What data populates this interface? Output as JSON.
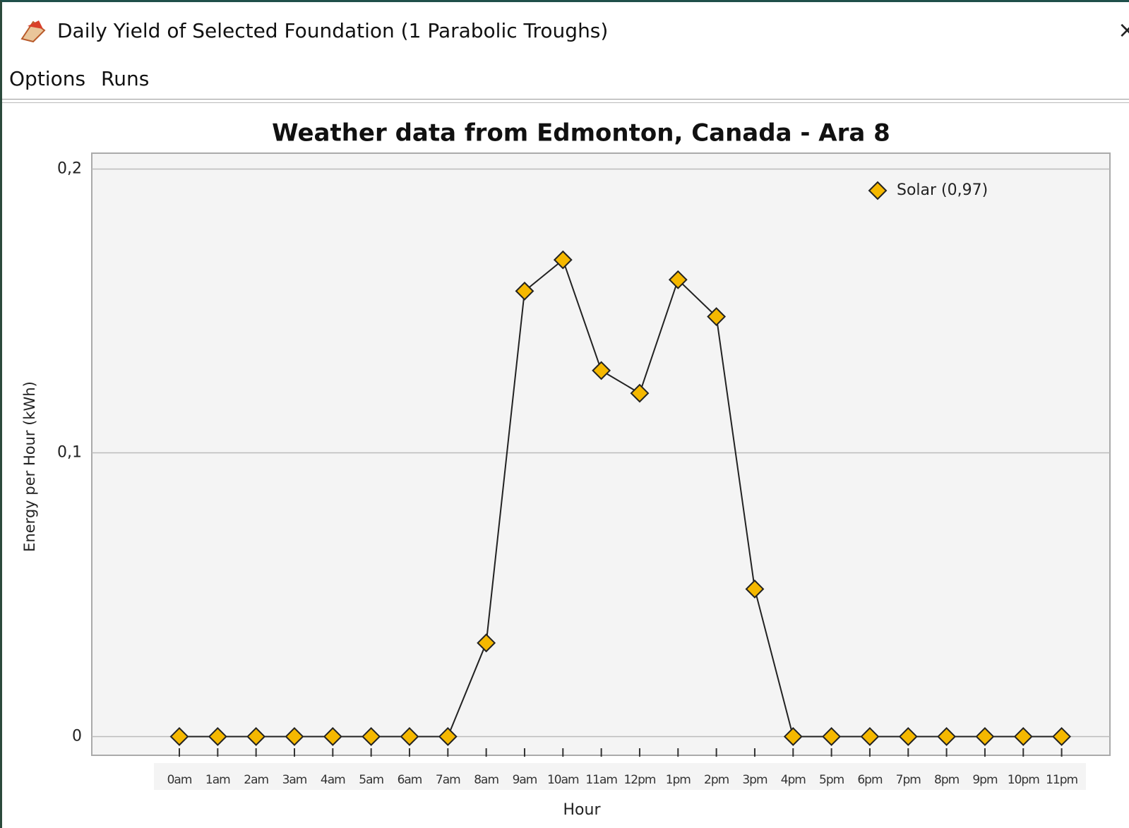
{
  "window": {
    "title": "Daily Yield of Selected Foundation (1 Parabolic Troughs)",
    "menu": [
      "Options",
      "Runs"
    ]
  },
  "chart_data": {
    "type": "line",
    "title": "Weather data from Edmonton, Canada - Ara 8",
    "x_label": "Hour",
    "y_label": "Energy per Hour (kWh)",
    "categories": [
      "0am",
      "1am",
      "2am",
      "3am",
      "4am",
      "5am",
      "6am",
      "7am",
      "8am",
      "9am",
      "10am",
      "11am",
      "12pm",
      "1pm",
      "2pm",
      "3pm",
      "4pm",
      "5pm",
      "6pm",
      "7pm",
      "8pm",
      "9pm",
      "10pm",
      "11pm"
    ],
    "series": [
      {
        "name": "Solar (0,97)",
        "color": "#f5b800",
        "values": [
          0,
          0,
          0,
          0,
          0,
          0,
          0,
          0,
          0.033,
          0.157,
          0.168,
          0.129,
          0.121,
          0.161,
          0.148,
          0.052,
          0,
          0,
          0,
          0,
          0,
          0,
          0,
          0
        ]
      }
    ],
    "ylim": [
      -0.0066,
      0.2056
    ],
    "yticks": [
      {
        "value": 0,
        "label": "0"
      },
      {
        "value": 0.1,
        "label": "0,1"
      },
      {
        "value": 0.2,
        "label": "0,2"
      }
    ],
    "grid": true,
    "legend": "top-right"
  }
}
